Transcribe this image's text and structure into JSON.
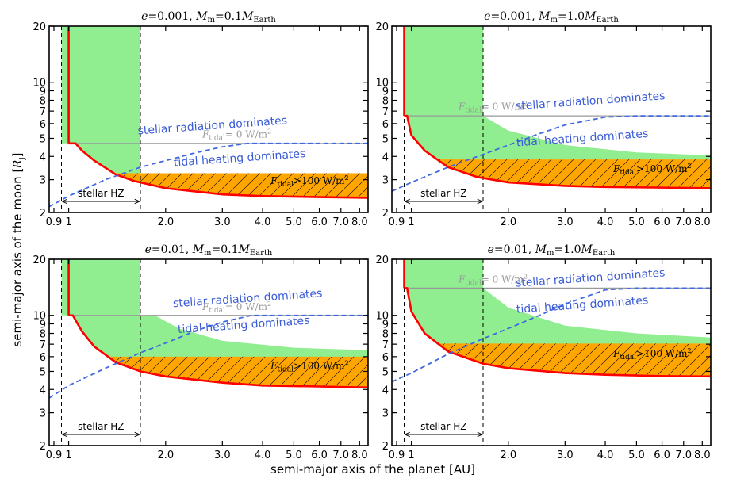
{
  "figure": {
    "xlabel": "semi-major axis of the planet [AU]",
    "ylabel": "semi-major axis of the moon [R_J]",
    "ylabel_parts": {
      "main": "semi-major axis of the moon [",
      "sym": "R",
      "sub": "J",
      "end": "]"
    }
  },
  "annotations": {
    "stellar_radiation": "stellar radiation dominates",
    "tidal_heating": "tidal heating dominates",
    "ftidal_zero_value": "= 0 W/m",
    "ftidal_high_value": ">100 W/m",
    "ftidal_symbol": "F",
    "ftidal_sub": "tidal",
    "exp2": "2",
    "stellar_hz": "stellar HZ"
  },
  "colors": {
    "green": "#90ee90",
    "orange": "#ffa500",
    "red": "#ff0000",
    "blue_dashed": "#4169e1",
    "grey_line": "#999999",
    "annotation_blue": "#3a5bd6"
  },
  "chart_data": [
    {
      "type": "area",
      "title": "e = 0.001, M_m = 0.1 M_Earth",
      "title_parts": {
        "e": "e",
        "e_val": "=0.001,",
        "M": "M",
        "m_sub": "m",
        "mass_val": "=0.1",
        "ME": "M",
        "earth_sub": "Earth"
      },
      "xscale": "log",
      "yscale": "log",
      "xlim": [
        0.87,
        8.5
      ],
      "ylim": [
        2,
        20
      ],
      "xticks": [
        0.9,
        1,
        2.0,
        3.0,
        4.0,
        5.0,
        6.0,
        7.0,
        8.0
      ],
      "xticklabels": [
        "0.9",
        "1",
        "2.0",
        "3.0",
        "4.0",
        "5.0",
        "6.0",
        "7.0",
        "8.0"
      ],
      "yticks": [
        2,
        3,
        4,
        5,
        6,
        7,
        8,
        9,
        10,
        20
      ],
      "yticklabels": [
        "2",
        "3",
        "4",
        "5",
        "6",
        "7",
        "8",
        "9",
        "10",
        "20"
      ],
      "hz": [
        0.95,
        1.67
      ],
      "ftidal_zero_level": 4.7,
      "orange_top": 3.25,
      "red_curve": {
        "x": [
          1.0,
          1.05,
          1.1,
          1.2,
          1.4,
          1.6,
          2.0,
          3.0,
          4.0,
          6.0,
          8.5
        ],
        "y": [
          4.7,
          4.7,
          4.3,
          3.8,
          3.2,
          2.95,
          2.7,
          2.5,
          2.45,
          2.42,
          2.4
        ]
      },
      "green_upper": {
        "x": [
          0.95,
          1.67,
          1.67,
          8.5
        ],
        "y": [
          20,
          20,
          3.25,
          3.25
        ]
      },
      "blue_dashed": {
        "x": [
          0.87,
          1.0,
          1.3,
          1.67,
          2.0,
          2.5,
          3.0,
          3.6,
          5.0,
          8.5
        ],
        "y": [
          2.15,
          2.45,
          3.0,
          3.5,
          3.8,
          4.2,
          4.5,
          4.7,
          4.7,
          4.7
        ]
      },
      "label_positions": {
        "stellar": [
          2.8,
          5.6
        ],
        "tidal": [
          3.4,
          3.75
        ],
        "fzero": [
          2.6,
          5.05
        ],
        "fhigh": [
          5.6,
          2.85
        ]
      }
    },
    {
      "type": "area",
      "title": "e = 0.001, M_m = 1.0 M_Earth",
      "title_parts": {
        "e": "e",
        "e_val": "=0.001,",
        "M": "M",
        "m_sub": "m",
        "mass_val": "=1.0",
        "ME": "M",
        "earth_sub": "Earth"
      },
      "xscale": "log",
      "yscale": "log",
      "xlim": [
        0.87,
        8.5
      ],
      "ylim": [
        2,
        20
      ],
      "xticks": [
        0.9,
        1,
        2.0,
        3.0,
        4.0,
        5.0,
        6.0,
        7.0,
        8.0
      ],
      "xticklabels": [
        "0.9",
        "1",
        "2.0",
        "3.0",
        "4.0",
        "5.0",
        "6.0",
        "7.0",
        "8.0"
      ],
      "yticks": [
        2,
        3,
        4,
        5,
        6,
        7,
        8,
        9,
        10,
        20
      ],
      "yticklabels": [
        "2",
        "3",
        "4",
        "5",
        "6",
        "7",
        "8",
        "9",
        "10",
        "20"
      ],
      "hz": [
        0.95,
        1.67
      ],
      "ftidal_zero_level": 6.6,
      "orange_top": 3.85,
      "red_curve": {
        "x": [
          0.95,
          0.97,
          1.0,
          1.1,
          1.3,
          1.6,
          2.0,
          3.0,
          4.0,
          6.0,
          8.5
        ],
        "y": [
          6.6,
          6.6,
          5.2,
          4.3,
          3.5,
          3.1,
          2.9,
          2.78,
          2.74,
          2.72,
          2.7
        ]
      },
      "green_upper": {
        "x": [
          0.95,
          1.67,
          1.67,
          2.0,
          3.0,
          5.0,
          8.5
        ],
        "y": [
          20,
          20,
          6.6,
          5.5,
          4.6,
          4.2,
          4.05
        ]
      },
      "blue_dashed": {
        "x": [
          0.87,
          1.0,
          1.3,
          1.67,
          2.0,
          2.5,
          3.0,
          4.0,
          5.0,
          8.5
        ],
        "y": [
          2.6,
          2.9,
          3.5,
          4.1,
          4.6,
          5.3,
          5.9,
          6.5,
          6.6,
          6.6
        ]
      },
      "label_positions": {
        "stellar": [
          3.6,
          7.6
        ],
        "tidal": [
          3.4,
          4.8
        ],
        "fzero": [
          1.4,
          7.1
        ],
        "fhigh": [
          5.6,
          3.3
        ]
      }
    },
    {
      "type": "area",
      "title": "e = 0.01, M_m = 0.1 M_Earth",
      "title_parts": {
        "e": "e",
        "e_val": "=0.01,",
        "M": "M",
        "m_sub": "m",
        "mass_val": "=0.1",
        "ME": "M",
        "earth_sub": "Earth"
      },
      "xscale": "log",
      "yscale": "log",
      "xlim": [
        0.87,
        8.5
      ],
      "ylim": [
        2,
        20
      ],
      "xticks": [
        0.9,
        1,
        2.0,
        3.0,
        4.0,
        5.0,
        6.0,
        7.0,
        8.0
      ],
      "xticklabels": [
        "0.9",
        "1",
        "2.0",
        "3.0",
        "4.0",
        "5.0",
        "6.0",
        "7.0",
        "8.0"
      ],
      "yticks": [
        2,
        3,
        4,
        5,
        6,
        7,
        8,
        9,
        10,
        20
      ],
      "yticklabels": [
        "2",
        "3",
        "4",
        "5",
        "6",
        "7",
        "8",
        "9",
        "10",
        "20"
      ],
      "hz": [
        0.95,
        1.67
      ],
      "ftidal_zero_level": 10.0,
      "orange_top": 6.0,
      "red_curve": {
        "x": [
          1.0,
          1.03,
          1.1,
          1.2,
          1.4,
          1.67,
          2.0,
          3.0,
          4.0,
          6.0,
          8.5
        ],
        "y": [
          10.0,
          10.0,
          8.2,
          6.8,
          5.6,
          5.0,
          4.7,
          4.35,
          4.2,
          4.15,
          4.1
        ]
      },
      "green_upper": {
        "x": [
          0.95,
          1.67,
          1.67,
          1.85,
          2.2,
          3.0,
          5.0,
          8.5
        ],
        "y": [
          20,
          20,
          10.0,
          10.0,
          8.5,
          7.3,
          6.7,
          6.5
        ]
      },
      "blue_dashed": {
        "x": [
          0.87,
          1.0,
          1.3,
          1.67,
          2.0,
          2.5,
          3.0,
          3.7,
          5.0,
          8.5
        ],
        "y": [
          3.6,
          4.2,
          5.2,
          6.3,
          7.1,
          8.3,
          9.2,
          10.0,
          10.0,
          10.0
        ]
      },
      "label_positions": {
        "stellar": [
          3.6,
          11.8
        ],
        "tidal": [
          3.5,
          8.5
        ],
        "fzero": [
          2.6,
          10.7
        ],
        "fhigh": [
          5.6,
          5.15
        ]
      }
    },
    {
      "type": "area",
      "title": "e = 0.01, M_m = 1.0 M_Earth",
      "title_parts": {
        "e": "e",
        "e_val": "=0.01,",
        "M": "M",
        "m_sub": "m",
        "mass_val": "=1.0",
        "ME": "M",
        "earth_sub": "Earth"
      },
      "xscale": "log",
      "yscale": "log",
      "xlim": [
        0.87,
        8.5
      ],
      "ylim": [
        2,
        20
      ],
      "xticks": [
        0.9,
        1,
        2.0,
        3.0,
        4.0,
        5.0,
        6.0,
        7.0,
        8.0
      ],
      "xticklabels": [
        "0.9",
        "1",
        "2.0",
        "3.0",
        "4.0",
        "5.0",
        "6.0",
        "7.0",
        "8.0"
      ],
      "yticks": [
        2,
        3,
        4,
        5,
        6,
        7,
        8,
        9,
        10,
        20
      ],
      "yticklabels": [
        "2",
        "3",
        "4",
        "5",
        "6",
        "7",
        "8",
        "9",
        "10",
        "20"
      ],
      "hz": [
        0.95,
        1.67
      ],
      "ftidal_zero_level": 14.0,
      "orange_top": 7.05,
      "red_curve": {
        "x": [
          0.95,
          0.97,
          1.0,
          1.1,
          1.3,
          1.67,
          2.0,
          3.0,
          4.0,
          6.0,
          8.5
        ],
        "y": [
          14.0,
          14.0,
          10.5,
          8.0,
          6.4,
          5.5,
          5.2,
          4.9,
          4.8,
          4.72,
          4.7
        ]
      },
      "green_upper": {
        "x": [
          0.95,
          1.67,
          1.67,
          2.0,
          3.0,
          5.0,
          8.5
        ],
        "y": [
          20,
          20,
          14.0,
          11.0,
          8.8,
          8.0,
          7.6
        ]
      },
      "blue_dashed": {
        "x": [
          0.87,
          1.0,
          1.3,
          1.67,
          2.0,
          2.5,
          3.0,
          4.0,
          5.0,
          8.5
        ],
        "y": [
          4.4,
          4.9,
          6.2,
          7.5,
          8.5,
          10.0,
          11.5,
          13.7,
          14.0,
          14.0
        ]
      },
      "label_positions": {
        "stellar": [
          3.6,
          15.2
        ],
        "tidal": [
          3.4,
          10.9
        ],
        "fzero": [
          1.4,
          15.0
        ],
        "fhigh": [
          5.6,
          6.0
        ]
      }
    }
  ]
}
